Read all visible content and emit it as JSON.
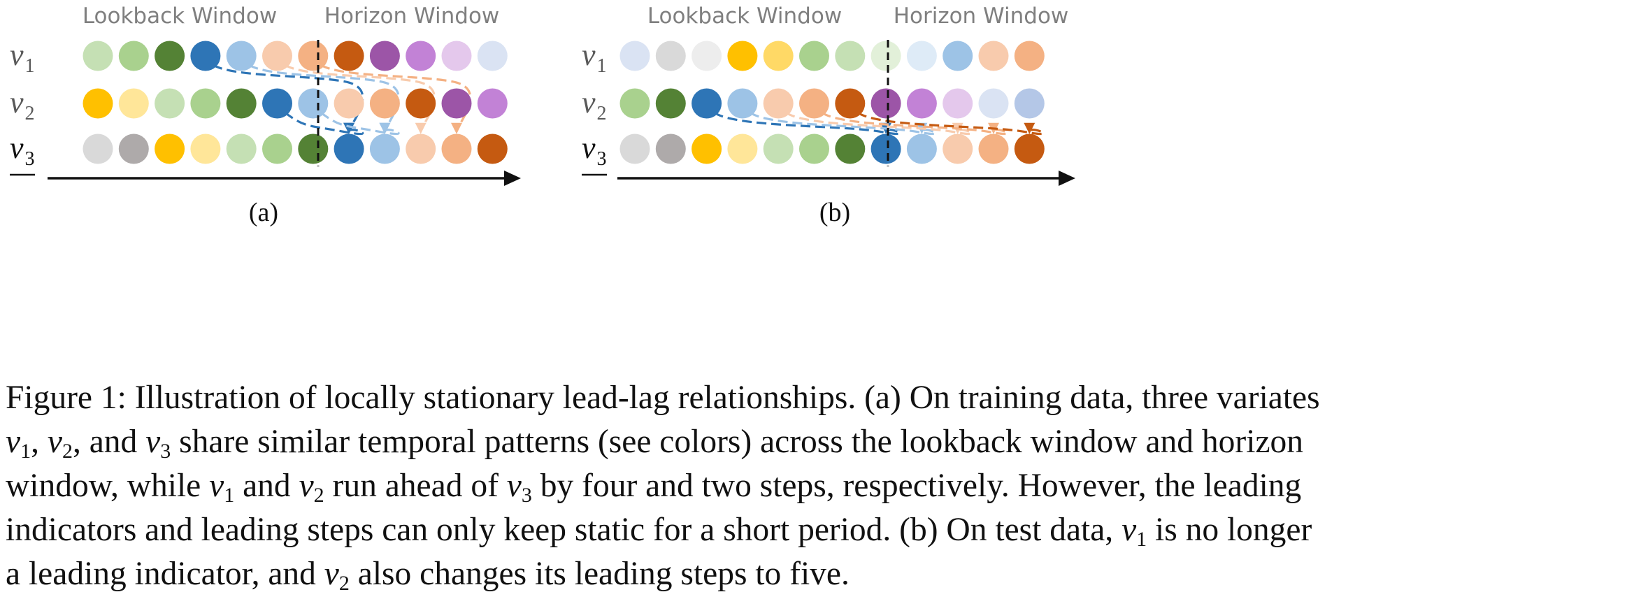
{
  "panels": [
    {
      "window_labels": [
        "Lookback Window",
        "Horizon Window"
      ],
      "variates": [
        {
          "name": "v",
          "sub": "1",
          "underlined": false
        },
        {
          "name": "v",
          "sub": "2",
          "underlined": false
        },
        {
          "name": "v",
          "sub": "3",
          "underlined": true
        }
      ],
      "rows": [
        [
          "#c5e0b4",
          "#a9d18e",
          "#548235",
          "#2e75b6",
          "#9dc3e6",
          "#f8cbad",
          "#f4b183",
          "#c55a11",
          "#9c55a7",
          "#c282d6",
          "#e4c8ec",
          "#dae3f3"
        ],
        [
          "#ffc000",
          "#ffe699",
          "#c5e0b4",
          "#a9d18e",
          "#548235",
          "#2e75b6",
          "#9dc3e6",
          "#f8cbad",
          "#f4b183",
          "#c55a11",
          "#9c55a7",
          "#c282d6"
        ],
        [
          "#d9d9d9",
          "#aeaaaa",
          "#ffc000",
          "#ffe699",
          "#c5e0b4",
          "#a9d18e",
          "#548235",
          "#2e75b6",
          "#9dc3e6",
          "#f8cbad",
          "#f4b183",
          "#c55a11"
        ]
      ],
      "arrows": [
        {
          "from": [
            1,
            4
          ],
          "to": [
            3,
            8
          ],
          "color": "#2e75b6"
        },
        {
          "from": [
            1,
            5
          ],
          "to": [
            3,
            9
          ],
          "color": "#9dc3e6"
        },
        {
          "from": [
            1,
            6
          ],
          "to": [
            3,
            10
          ],
          "color": "#f8cbad"
        },
        {
          "from": [
            1,
            7
          ],
          "to": [
            3,
            11
          ],
          "color": "#f4b183"
        },
        {
          "from": [
            2,
            6
          ],
          "to": [
            3,
            8
          ],
          "color": "#2e75b6"
        },
        {
          "from": [
            2,
            7
          ],
          "to": [
            3,
            9
          ],
          "color": "#9dc3e6"
        }
      ],
      "caption_label": "(a)"
    },
    {
      "window_labels": [
        "Lookback Window",
        "Horizon Window"
      ],
      "variates": [
        {
          "name": "v",
          "sub": "1",
          "underlined": false
        },
        {
          "name": "v",
          "sub": "2",
          "underlined": false
        },
        {
          "name": "v",
          "sub": "3",
          "underlined": true
        }
      ],
      "rows": [
        [
          "#dae3f3",
          "#d9d9d9",
          "#ededed",
          "#ffc000",
          "#ffd966",
          "#a9d18e",
          "#c5e0b4",
          "#e2f0d9",
          "#deebf7",
          "#9dc3e6",
          "#f8cbad",
          "#f4b183"
        ],
        [
          "#a9d18e",
          "#548235",
          "#2e75b6",
          "#9dc3e6",
          "#f8cbad",
          "#f4b183",
          "#c55a11",
          "#9c55a7",
          "#c282d6",
          "#e4c8ec",
          "#dae3f3",
          "#b4c7e7"
        ],
        [
          "#d9d9d9",
          "#aeaaaa",
          "#ffc000",
          "#ffe699",
          "#c5e0b4",
          "#a9d18e",
          "#548235",
          "#2e75b6",
          "#9dc3e6",
          "#f8cbad",
          "#f4b183",
          "#c55a11"
        ]
      ],
      "arrows": [
        {
          "from": [
            2,
            3
          ],
          "to": [
            3,
            8
          ],
          "color": "#2e75b6"
        },
        {
          "from": [
            2,
            4
          ],
          "to": [
            3,
            9
          ],
          "color": "#9dc3e6"
        },
        {
          "from": [
            2,
            5
          ],
          "to": [
            3,
            10
          ],
          "color": "#f8cbad"
        },
        {
          "from": [
            2,
            6
          ],
          "to": [
            3,
            11
          ],
          "color": "#f4b183"
        },
        {
          "from": [
            2,
            7
          ],
          "to": [
            3,
            12
          ],
          "color": "#c55a11"
        }
      ],
      "caption_label": "(b)"
    }
  ],
  "caption": {
    "label": "Figure 1:",
    "sentence1": "Illustration of locally stationary lead-lag relationships. (a) On training data, three variates",
    "vars_v1": "v",
    "sub1": "1",
    "comma": ", ",
    "sub2": "2",
    "and": ", and ",
    "sub3": "3",
    "line2_rest": " share similar temporal patterns (see colors) across the lookback window and horizon",
    "line3_a": "window, while ",
    "line3_b": " and ",
    "line3_c": " run ahead of ",
    "line3_d": " by four and two steps, respectively. However, the leading",
    "line4": "indicators and leading steps can only keep static for a short period. (b) On test data, ",
    "line4_end": " is no longer",
    "line5_a": "a leading indicator, and ",
    "line5_b": " also changes its leading steps to five."
  }
}
